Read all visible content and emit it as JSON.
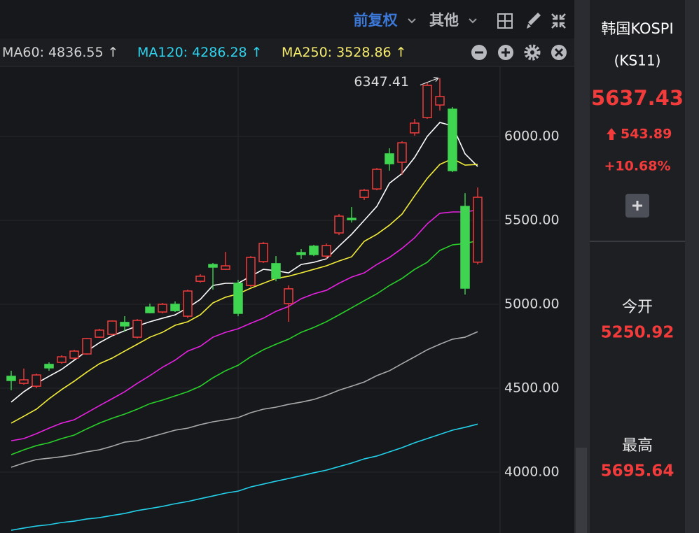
{
  "toolbar": {
    "adjust": "前复权",
    "other": "其他"
  },
  "chart_data": {
    "type": "candlestick",
    "up_color": "#f23b3b",
    "down_color": "#3fd550",
    "candles": [
      {
        "open": 4571,
        "high": 4604,
        "low": 4488,
        "close": 4546
      },
      {
        "open": 4529,
        "high": 4617,
        "low": 4521,
        "close": 4550
      },
      {
        "open": 4512,
        "high": 4587,
        "low": 4500,
        "close": 4579
      },
      {
        "open": 4642,
        "high": 4654,
        "low": 4604,
        "close": 4621
      },
      {
        "open": 4654,
        "high": 4696,
        "low": 4646,
        "close": 4687
      },
      {
        "open": 4679,
        "high": 4729,
        "low": 4671,
        "close": 4721
      },
      {
        "open": 4704,
        "high": 4800,
        "low": 4700,
        "close": 4796
      },
      {
        "open": 4804,
        "high": 4854,
        "low": 4800,
        "close": 4846
      },
      {
        "open": 4821,
        "high": 4904,
        "low": 4812,
        "close": 4900
      },
      {
        "open": 4892,
        "high": 4929,
        "low": 4837,
        "close": 4871
      },
      {
        "open": 4804,
        "high": 4912,
        "low": 4796,
        "close": 4904
      },
      {
        "open": 4983,
        "high": 5004,
        "low": 4946,
        "close": 4950
      },
      {
        "open": 4954,
        "high": 5008,
        "low": 4946,
        "close": 5000
      },
      {
        "open": 5000,
        "high": 5017,
        "low": 4954,
        "close": 4962
      },
      {
        "open": 4929,
        "high": 5087,
        "low": 4917,
        "close": 5079
      },
      {
        "open": 5137,
        "high": 5179,
        "low": 5129,
        "close": 5167
      },
      {
        "open": 5237,
        "high": 5246,
        "low": 5087,
        "close": 5221
      },
      {
        "open": 5208,
        "high": 5312,
        "low": 5204,
        "close": 5229
      },
      {
        "open": 5125,
        "high": 5146,
        "low": 4929,
        "close": 4946
      },
      {
        "open": 5112,
        "high": 5287,
        "low": 5104,
        "close": 5279
      },
      {
        "open": 5254,
        "high": 5371,
        "low": 5246,
        "close": 5362
      },
      {
        "open": 5242,
        "high": 5287,
        "low": 5137,
        "close": 5154
      },
      {
        "open": 5004,
        "high": 5112,
        "low": 4896,
        "close": 5092
      },
      {
        "open": 5308,
        "high": 5329,
        "low": 5271,
        "close": 5296
      },
      {
        "open": 5346,
        "high": 5354,
        "low": 5287,
        "close": 5296
      },
      {
        "open": 5287,
        "high": 5362,
        "low": 5271,
        "close": 5350
      },
      {
        "open": 5425,
        "high": 5537,
        "low": 5412,
        "close": 5525
      },
      {
        "open": 5512,
        "high": 5579,
        "low": 5487,
        "close": 5504
      },
      {
        "open": 5637,
        "high": 5687,
        "low": 5621,
        "close": 5679
      },
      {
        "open": 5687,
        "high": 5812,
        "low": 5679,
        "close": 5804
      },
      {
        "open": 5896,
        "high": 5929,
        "low": 5796,
        "close": 5837
      },
      {
        "open": 5846,
        "high": 5971,
        "low": 5771,
        "close": 5962
      },
      {
        "open": 6021,
        "high": 6104,
        "low": 6004,
        "close": 6079
      },
      {
        "open": 6112,
        "high": 6321,
        "low": 6104,
        "close": 6304
      },
      {
        "open": 6187,
        "high": 6347.41,
        "low": 6154,
        "close": 6237
      },
      {
        "open": 6162,
        "high": 6175,
        "low": 5787,
        "close": 5796
      },
      {
        "open": 5583,
        "high": 5662,
        "low": 5058,
        "close": 5096
      },
      {
        "open": 5250.92,
        "high": 5695.64,
        "low": 5237,
        "close": 5637.43
      }
    ],
    "series": [
      {
        "color": "#ffffff",
        "values": [
          4417,
          4479,
          4529,
          4571,
          4612,
          4667,
          4721,
          4771,
          4812,
          4842,
          4871,
          4896,
          4917,
          4937,
          4979,
          5029,
          5112,
          5125,
          5125,
          5167,
          5208,
          5200,
          5187,
          5237,
          5250,
          5271,
          5346,
          5417,
          5500,
          5583,
          5721,
          5779,
          5875,
          6000,
          6083,
          6063,
          5896,
          5821
        ]
      },
      {
        "color": "#f2ec3a",
        "values": [
          4292,
          4333,
          4375,
          4437,
          4492,
          4542,
          4596,
          4646,
          4679,
          4721,
          4762,
          4804,
          4833,
          4875,
          4896,
          4937,
          5008,
          5042,
          5062,
          5096,
          5125,
          5154,
          5167,
          5187,
          5208,
          5229,
          5258,
          5283,
          5375,
          5417,
          5471,
          5537,
          5646,
          5750,
          5833,
          5867,
          5829,
          5833
        ]
      },
      {
        "color": "#e522e0",
        "values": [
          4187,
          4200,
          4229,
          4262,
          4292,
          4312,
          4354,
          4396,
          4437,
          4479,
          4529,
          4575,
          4625,
          4667,
          4721,
          4750,
          4804,
          4833,
          4854,
          4887,
          4917,
          4958,
          4987,
          5033,
          5062,
          5083,
          5125,
          5162,
          5187,
          5237,
          5279,
          5333,
          5396,
          5479,
          5542,
          5550,
          5550,
          5562
        ]
      },
      {
        "color": "#2ad12a",
        "values": [
          4104,
          4133,
          4158,
          4175,
          4200,
          4221,
          4258,
          4292,
          4321,
          4346,
          4375,
          4408,
          4429,
          4454,
          4479,
          4512,
          4562,
          4604,
          4637,
          4687,
          4729,
          4762,
          4792,
          4833,
          4862,
          4896,
          4937,
          4979,
          5021,
          5062,
          5112,
          5154,
          5208,
          5250,
          5321,
          5354,
          5362,
          5379
        ]
      },
      {
        "color": "#a9a9a9",
        "values": [
          4029,
          4054,
          4075,
          4083,
          4092,
          4104,
          4121,
          4133,
          4154,
          4179,
          4187,
          4208,
          4229,
          4250,
          4262,
          4283,
          4300,
          4312,
          4325,
          4354,
          4375,
          4387,
          4404,
          4417,
          4433,
          4458,
          4488,
          4512,
          4537,
          4575,
          4604,
          4646,
          4687,
          4729,
          4762,
          4792,
          4804,
          4836.55
        ]
      },
      {
        "color": "#22d0ea",
        "values": [
          3654,
          3667,
          3679,
          3687,
          3700,
          3708,
          3721,
          3729,
          3742,
          3754,
          3771,
          3783,
          3796,
          3812,
          3825,
          3842,
          3858,
          3875,
          3887,
          3912,
          3929,
          3946,
          3962,
          3979,
          3996,
          4012,
          4033,
          4054,
          4079,
          4096,
          4121,
          4146,
          4175,
          4200,
          4225,
          4250,
          4267,
          4286.28
        ]
      }
    ],
    "indicators": [
      {
        "label": "MA60:",
        "value": 4836.55,
        "trend": "↑",
        "color": "#d2d2d2"
      },
      {
        "label": "MA120:",
        "value": 4286.28,
        "trend": "↑",
        "color": "#2fd3ee"
      },
      {
        "label": "MA250:",
        "value": 3528.86,
        "trend": "↑",
        "color": "#f5ec6e"
      }
    ],
    "ylim": [
      3637.5,
      6416.67
    ],
    "yticks": [
      {
        "value": 4000,
        "label": "4000.00"
      },
      {
        "value": 4500,
        "label": "4500.00"
      },
      {
        "value": 5000,
        "label": "5000.00"
      },
      {
        "value": 5500,
        "label": "5500.00"
      },
      {
        "value": 6000,
        "label": "6000.00"
      }
    ],
    "grid": true
  },
  "quote": {
    "name": "韩国KOSPI",
    "code": "(KS11)",
    "price": 5637.43,
    "change": 543.89,
    "change_pct": {
      "value": 10.68,
      "label": "+10.68%"
    },
    "open_label": "今开",
    "open": 5250.92,
    "high_label": "最高",
    "high": 5695.64
  }
}
